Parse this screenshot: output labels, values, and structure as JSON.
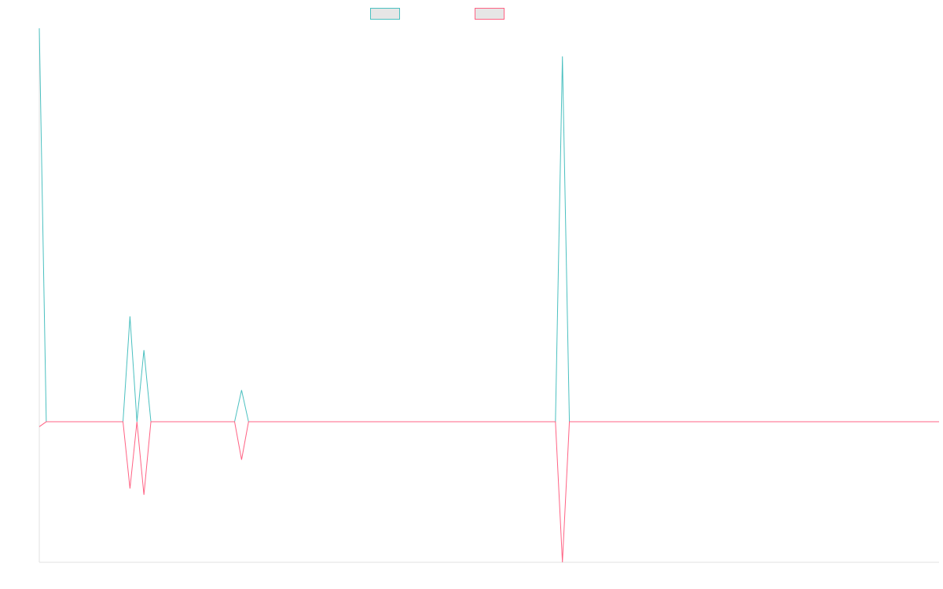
{
  "chart_data": {
    "type": "line",
    "title": "",
    "xlabel": "",
    "ylabel": "",
    "x": [
      0,
      1,
      2,
      3,
      4,
      5,
      6,
      7,
      8,
      9,
      10,
      11,
      12,
      13,
      14,
      15,
      16,
      17,
      18,
      19,
      20,
      21,
      22,
      23,
      24,
      25,
      26,
      27,
      28,
      29,
      30,
      31,
      32,
      33,
      34,
      35,
      36,
      37,
      38,
      39,
      40,
      41,
      42,
      43,
      44,
      45,
      46,
      47,
      48,
      49,
      50,
      51,
      52,
      53,
      54,
      55,
      56,
      57,
      58,
      59,
      60,
      61,
      62,
      63,
      64,
      65,
      66,
      67,
      68,
      69,
      70,
      71,
      72,
      73,
      74,
      75,
      76,
      77,
      78,
      79,
      80,
      81,
      82,
      83,
      84,
      85,
      86,
      87,
      88,
      89,
      90,
      91,
      92,
      93,
      94,
      95,
      96,
      97,
      98,
      99,
      100,
      101,
      102,
      103,
      104,
      105,
      106,
      107,
      108,
      109,
      110,
      111,
      112,
      113,
      114,
      115,
      116,
      117,
      118,
      119,
      120,
      121,
      122,
      123,
      124,
      125,
      126,
      127,
      128,
      129
    ],
    "series": [
      {
        "name": "",
        "color": "#4bc0c0",
        "values": [
          560,
          0,
          0,
          0,
          0,
          0,
          0,
          0,
          0,
          0,
          0,
          0,
          0,
          150,
          0,
          102,
          0,
          0,
          0,
          0,
          0,
          0,
          0,
          0,
          0,
          0,
          0,
          0,
          0,
          45,
          0,
          0,
          0,
          0,
          0,
          0,
          0,
          0,
          0,
          0,
          0,
          0,
          0,
          0,
          0,
          0,
          0,
          0,
          0,
          0,
          0,
          0,
          0,
          0,
          0,
          0,
          0,
          0,
          0,
          0,
          0,
          0,
          0,
          0,
          0,
          0,
          0,
          0,
          0,
          0,
          0,
          0,
          0,
          0,
          0,
          520,
          0,
          0,
          0,
          0,
          0,
          0,
          0,
          0,
          0,
          0,
          0,
          0,
          0,
          0,
          0,
          0,
          0,
          0,
          0,
          0,
          0,
          0,
          0,
          0,
          0,
          0,
          0,
          0,
          0,
          0,
          0,
          0,
          0,
          0,
          0,
          0,
          0,
          0,
          0,
          0,
          0,
          0,
          0,
          0,
          0,
          0,
          0,
          0,
          0,
          0,
          0,
          0,
          0,
          0
        ]
      },
      {
        "name": "",
        "color": "#ff6384",
        "values": [
          -7,
          0,
          0,
          0,
          0,
          0,
          0,
          0,
          0,
          0,
          0,
          0,
          0,
          -95,
          0,
          -104,
          0,
          0,
          0,
          0,
          0,
          0,
          0,
          0,
          0,
          0,
          0,
          0,
          0,
          -54,
          0,
          0,
          0,
          0,
          0,
          0,
          0,
          0,
          0,
          0,
          0,
          0,
          0,
          0,
          0,
          0,
          0,
          0,
          0,
          0,
          0,
          0,
          0,
          0,
          0,
          0,
          0,
          0,
          0,
          0,
          0,
          0,
          0,
          0,
          0,
          0,
          0,
          0,
          0,
          0,
          0,
          0,
          0,
          0,
          0,
          -200,
          0,
          0,
          0,
          0,
          0,
          0,
          0,
          0,
          0,
          0,
          0,
          0,
          0,
          0,
          0,
          0,
          0,
          0,
          0,
          0,
          0,
          0,
          0,
          0,
          0,
          0,
          0,
          0,
          0,
          0,
          0,
          0,
          0,
          0,
          0,
          0,
          0,
          0,
          0,
          0,
          0,
          0,
          0,
          0,
          0,
          0,
          0,
          0,
          0,
          0,
          0,
          0,
          0,
          0
        ]
      }
    ],
    "ylim": [
      -200,
      560
    ],
    "grid": false,
    "legend": "top-center"
  }
}
